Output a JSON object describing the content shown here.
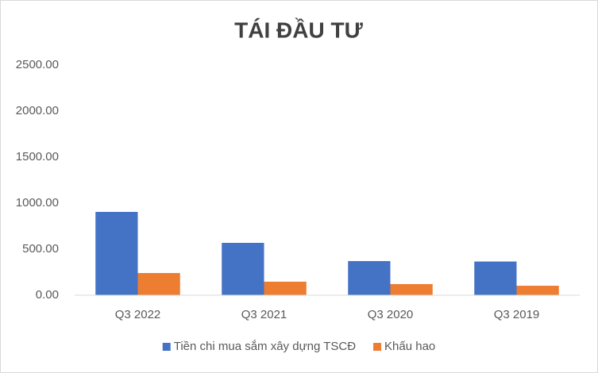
{
  "chart_data": {
    "type": "bar",
    "title": "TÁI ĐẦU TƯ",
    "categories": [
      "Q3 2022",
      "Q3 2021",
      "Q3 2020",
      "Q3 2019"
    ],
    "series": [
      {
        "name": "Tiền chi mua sắm xây dựng TSCĐ",
        "color": "#4472c4",
        "values": [
          905,
          569,
          371,
          366
        ]
      },
      {
        "name": "Khấu hao",
        "color": "#ed7d31",
        "values": [
          241,
          147,
          121,
          103
        ]
      }
    ],
    "ylim": [
      0,
      2500
    ],
    "yticks": [
      {
        "value": 0,
        "label": "0.00"
      },
      {
        "value": 500,
        "label": "500.00"
      },
      {
        "value": 1000,
        "label": "1000.00"
      },
      {
        "value": 1500,
        "label": "1500.00"
      },
      {
        "value": 2000,
        "label": "2000.00"
      },
      {
        "value": 2500,
        "label": "2500.00"
      }
    ],
    "grid": false,
    "legend": "bottom"
  }
}
